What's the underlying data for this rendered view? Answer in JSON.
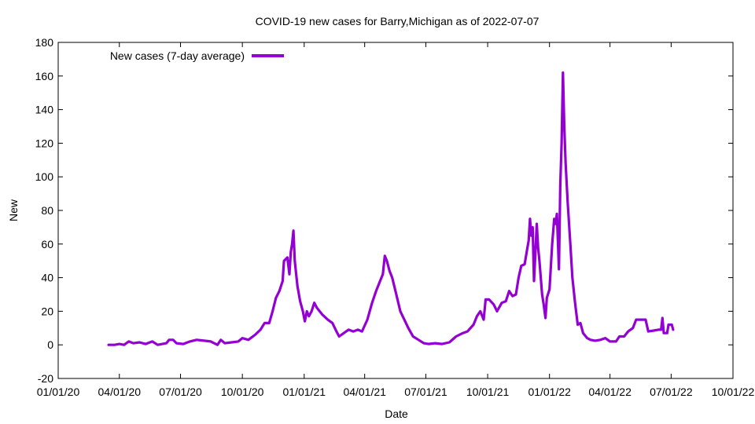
{
  "chart_data": {
    "type": "line",
    "title": "COVID-19 new cases for Barry,Michigan as of 2022-07-07",
    "xlabel": "Date",
    "ylabel": "New",
    "xlim": [
      "2020-01-01",
      "2022-10-01"
    ],
    "ylim": [
      -20,
      180
    ],
    "x_ticks": [
      "01/01/20",
      "04/01/20",
      "07/01/20",
      "10/01/20",
      "01/01/21",
      "04/01/21",
      "07/01/21",
      "10/01/21",
      "01/01/22",
      "04/01/22",
      "07/01/22",
      "10/01/22"
    ],
    "y_ticks": [
      -20,
      0,
      20,
      40,
      60,
      80,
      100,
      120,
      140,
      160,
      180
    ],
    "grid": false,
    "legend": {
      "position": "top-left"
    },
    "series": [
      {
        "name": "New cases (7-day average)",
        "color": "#9400d3",
        "points": [
          [
            "2020-03-16",
            0
          ],
          [
            "2020-03-25",
            0
          ],
          [
            "2020-04-01",
            0.5
          ],
          [
            "2020-04-08",
            0
          ],
          [
            "2020-04-15",
            2
          ],
          [
            "2020-04-22",
            1
          ],
          [
            "2020-05-01",
            1.5
          ],
          [
            "2020-05-10",
            0.5
          ],
          [
            "2020-05-20",
            2
          ],
          [
            "2020-05-28",
            0
          ],
          [
            "2020-06-10",
            1
          ],
          [
            "2020-06-14",
            3
          ],
          [
            "2020-06-20",
            3
          ],
          [
            "2020-06-25",
            1
          ],
          [
            "2020-07-05",
            0.5
          ],
          [
            "2020-07-15",
            2
          ],
          [
            "2020-07-25",
            3
          ],
          [
            "2020-08-05",
            2.5
          ],
          [
            "2020-08-15",
            2
          ],
          [
            "2020-08-25",
            0
          ],
          [
            "2020-08-30",
            3
          ],
          [
            "2020-09-05",
            1
          ],
          [
            "2020-09-15",
            1.5
          ],
          [
            "2020-09-25",
            2
          ],
          [
            "2020-10-01",
            4
          ],
          [
            "2020-10-10",
            3
          ],
          [
            "2020-10-20",
            6
          ],
          [
            "2020-10-28",
            9
          ],
          [
            "2020-11-03",
            13
          ],
          [
            "2020-11-10",
            13
          ],
          [
            "2020-11-15",
            20
          ],
          [
            "2020-11-20",
            28
          ],
          [
            "2020-11-25",
            32
          ],
          [
            "2020-11-30",
            38
          ],
          [
            "2020-12-02",
            50
          ],
          [
            "2020-12-07",
            52
          ],
          [
            "2020-12-10",
            42
          ],
          [
            "2020-12-12",
            55
          ],
          [
            "2020-12-14",
            60
          ],
          [
            "2020-12-16",
            68
          ],
          [
            "2020-12-18",
            50
          ],
          [
            "2020-12-22",
            35
          ],
          [
            "2020-12-26",
            26
          ],
          [
            "2020-12-30",
            20
          ],
          [
            "2021-01-02",
            14
          ],
          [
            "2021-01-05",
            20
          ],
          [
            "2021-01-08",
            17
          ],
          [
            "2021-01-12",
            20
          ],
          [
            "2021-01-16",
            25
          ],
          [
            "2021-01-20",
            22
          ],
          [
            "2021-01-28",
            18
          ],
          [
            "2021-02-05",
            15
          ],
          [
            "2021-02-12",
            13
          ],
          [
            "2021-02-18",
            8
          ],
          [
            "2021-02-22",
            5
          ],
          [
            "2021-03-01",
            7
          ],
          [
            "2021-03-08",
            9
          ],
          [
            "2021-03-15",
            8
          ],
          [
            "2021-03-22",
            9
          ],
          [
            "2021-03-28",
            8
          ],
          [
            "2021-04-05",
            15
          ],
          [
            "2021-04-12",
            25
          ],
          [
            "2021-04-18",
            32
          ],
          [
            "2021-04-24",
            38
          ],
          [
            "2021-04-28",
            42
          ],
          [
            "2021-05-01",
            53
          ],
          [
            "2021-05-04",
            50
          ],
          [
            "2021-05-08",
            44
          ],
          [
            "2021-05-12",
            40
          ],
          [
            "2021-05-18",
            30
          ],
          [
            "2021-05-24",
            20
          ],
          [
            "2021-05-30",
            15
          ],
          [
            "2021-06-05",
            10
          ],
          [
            "2021-06-12",
            5
          ],
          [
            "2021-06-20",
            3
          ],
          [
            "2021-06-28",
            1
          ],
          [
            "2021-07-05",
            0.5
          ],
          [
            "2021-07-15",
            1
          ],
          [
            "2021-07-25",
            0.5
          ],
          [
            "2021-08-05",
            1.5
          ],
          [
            "2021-08-15",
            5
          ],
          [
            "2021-08-25",
            7
          ],
          [
            "2021-09-01",
            8
          ],
          [
            "2021-09-10",
            12
          ],
          [
            "2021-09-15",
            17
          ],
          [
            "2021-09-20",
            20
          ],
          [
            "2021-09-25",
            15
          ],
          [
            "2021-09-28",
            27
          ],
          [
            "2021-10-03",
            27
          ],
          [
            "2021-10-10",
            24
          ],
          [
            "2021-10-15",
            20
          ],
          [
            "2021-10-22",
            25
          ],
          [
            "2021-10-28",
            26
          ],
          [
            "2021-11-02",
            32
          ],
          [
            "2021-11-07",
            29
          ],
          [
            "2021-11-12",
            30
          ],
          [
            "2021-11-16",
            40
          ],
          [
            "2021-11-20",
            47
          ],
          [
            "2021-11-25",
            48
          ],
          [
            "2021-11-28",
            55
          ],
          [
            "2021-12-01",
            62
          ],
          [
            "2021-12-03",
            75
          ],
          [
            "2021-12-05",
            65
          ],
          [
            "2021-12-07",
            70
          ],
          [
            "2021-12-09",
            38
          ],
          [
            "2021-12-11",
            55
          ],
          [
            "2021-12-13",
            72
          ],
          [
            "2021-12-15",
            58
          ],
          [
            "2021-12-17",
            50
          ],
          [
            "2021-12-19",
            40
          ],
          [
            "2021-12-21",
            30
          ],
          [
            "2021-12-23",
            25
          ],
          [
            "2021-12-26",
            16
          ],
          [
            "2021-12-28",
            28
          ],
          [
            "2022-01-01",
            33
          ],
          [
            "2022-01-05",
            60
          ],
          [
            "2022-01-08",
            75
          ],
          [
            "2022-01-10",
            72
          ],
          [
            "2022-01-12",
            78
          ],
          [
            "2022-01-15",
            45
          ],
          [
            "2022-01-17",
            95
          ],
          [
            "2022-01-19",
            120
          ],
          [
            "2022-01-21",
            162
          ],
          [
            "2022-01-23",
            130
          ],
          [
            "2022-01-25",
            108
          ],
          [
            "2022-01-28",
            85
          ],
          [
            "2022-02-01",
            60
          ],
          [
            "2022-02-04",
            40
          ],
          [
            "2022-02-08",
            25
          ],
          [
            "2022-02-12",
            12
          ],
          [
            "2022-02-16",
            13
          ],
          [
            "2022-02-20",
            7
          ],
          [
            "2022-02-26",
            4
          ],
          [
            "2022-03-03",
            3
          ],
          [
            "2022-03-10",
            2.5
          ],
          [
            "2022-03-18",
            3
          ],
          [
            "2022-03-25",
            4
          ],
          [
            "2022-04-01",
            2
          ],
          [
            "2022-04-10",
            2
          ],
          [
            "2022-04-15",
            5
          ],
          [
            "2022-04-22",
            5
          ],
          [
            "2022-04-28",
            8
          ],
          [
            "2022-05-05",
            10
          ],
          [
            "2022-05-10",
            15
          ],
          [
            "2022-05-17",
            15
          ],
          [
            "2022-05-24",
            15
          ],
          [
            "2022-05-28",
            8
          ],
          [
            "2022-06-05",
            8.5
          ],
          [
            "2022-06-12",
            9
          ],
          [
            "2022-06-16",
            9
          ],
          [
            "2022-06-18",
            16
          ],
          [
            "2022-06-20",
            7
          ],
          [
            "2022-06-25",
            7
          ],
          [
            "2022-06-27",
            12
          ],
          [
            "2022-07-02",
            12
          ],
          [
            "2022-07-04",
            9
          ]
        ]
      }
    ]
  }
}
